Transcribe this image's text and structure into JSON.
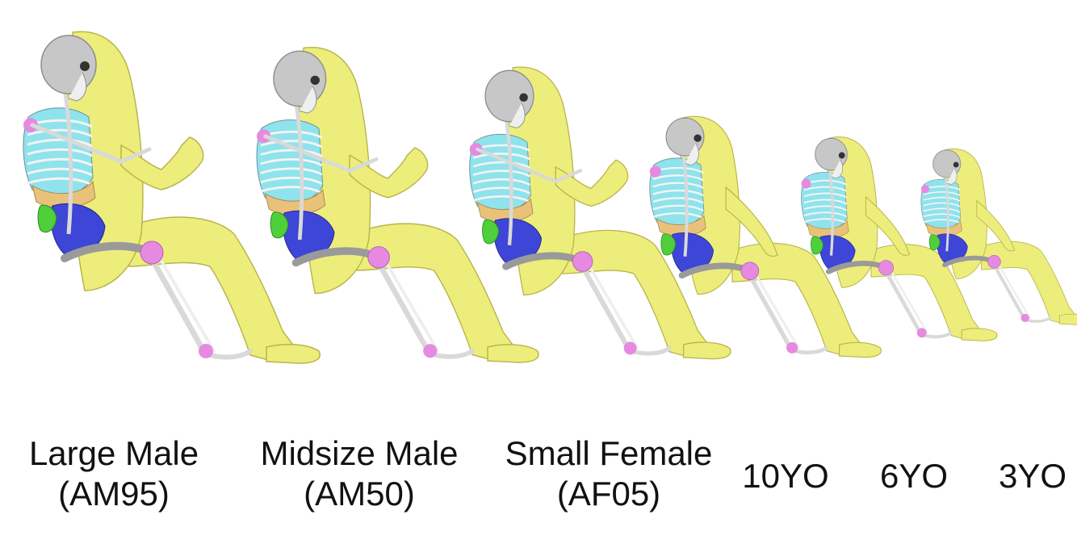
{
  "models": [
    {
      "name": "Large Male",
      "code": "(AM95)"
    },
    {
      "name": "Midsize Male",
      "code": "(AM50)"
    },
    {
      "name": "Small Female",
      "code": "(AF05)"
    },
    {
      "name": "10YO",
      "code": ""
    },
    {
      "name": "6YO",
      "code": ""
    },
    {
      "name": "3YO",
      "code": ""
    }
  ],
  "colors": {
    "flesh": "#eded7c",
    "flesh_edge": "#b9b54a",
    "skull": "#c7c7c7",
    "bone": "#d9d9d9",
    "ribs": "#8fe3ec",
    "liver": "#e8c27a",
    "intestine": "#3d46d6",
    "organ_green": "#4fcf3a",
    "joint": "#e58ae0",
    "text": "#111111"
  }
}
